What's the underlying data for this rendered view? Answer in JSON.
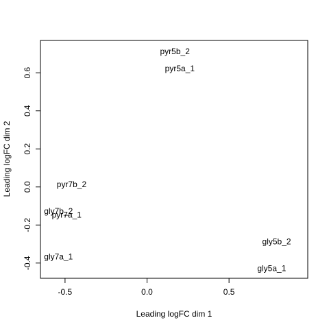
{
  "chart_data": {
    "type": "scatter",
    "title": "",
    "xlabel": "Leading logFC dim 1",
    "ylabel": "Leading logFC dim 2",
    "xlim": [
      -0.65,
      0.98
    ],
    "ylim": [
      -0.48,
      0.77
    ],
    "x_ticks": [
      -0.5,
      0.0,
      0.5
    ],
    "x_tick_labels": [
      "-0.5",
      "0.0",
      "0.5"
    ],
    "y_ticks": [
      -0.4,
      -0.2,
      0.0,
      0.2,
      0.4,
      0.6
    ],
    "y_tick_labels": [
      "-0.4",
      "-0.2",
      "0.0",
      "0.2",
      "0.4",
      "0.6"
    ],
    "grid": false,
    "points": [
      {
        "label": "pyr5b_2",
        "x": 0.17,
        "y": 0.71
      },
      {
        "label": "pyr5a_1",
        "x": 0.2,
        "y": 0.62
      },
      {
        "label": "pyr7b_2",
        "x": -0.46,
        "y": 0.01
      },
      {
        "label": "gly7b_2",
        "x": -0.54,
        "y": -0.13
      },
      {
        "label": "pyr7a_1",
        "x": -0.49,
        "y": -0.15
      },
      {
        "label": "gly5b_2",
        "x": 0.79,
        "y": -0.29
      },
      {
        "label": "gly7a_1",
        "x": -0.54,
        "y": -0.37
      },
      {
        "label": "gly5a_1",
        "x": 0.76,
        "y": -0.43
      }
    ]
  }
}
